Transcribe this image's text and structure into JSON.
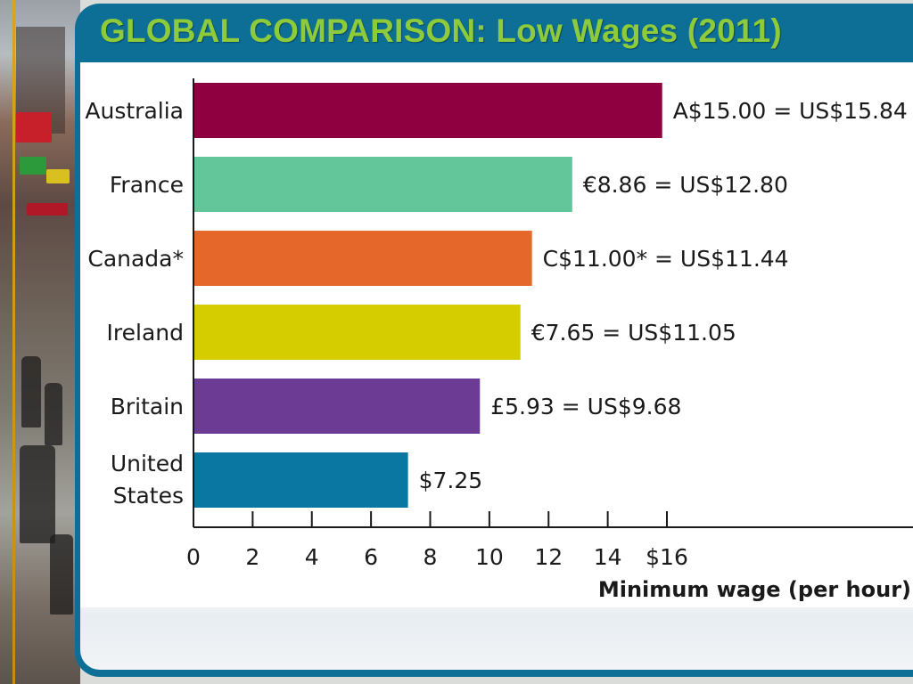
{
  "slide": {
    "title": "GLOBAL COMPARISON: Low Wages (2011)"
  },
  "colors": {
    "frame": "#0d6f96",
    "title": "#8ecb3a",
    "accent_rule": "#d9a41a"
  },
  "chart_data": {
    "type": "bar",
    "orientation": "horizontal",
    "categories": [
      "Australia",
      "France",
      "Canada*",
      "Ireland",
      "Britain",
      "United States"
    ],
    "values": [
      15.84,
      12.8,
      11.44,
      11.05,
      9.68,
      7.25
    ],
    "value_labels": [
      "A$15.00 = US$15.84",
      "€8.86 = US$12.80",
      "C$11.00* = US$11.44",
      "€7.65 = US$11.05",
      "£5.93 = US$9.68",
      "$7.25"
    ],
    "colors": [
      "#8e0040",
      "#63c59a",
      "#e5672a",
      "#d6cd00",
      "#6c3c95",
      "#0a76a2"
    ],
    "xlabel": "Minimum wage (per hour)",
    "xlim": [
      0,
      16
    ],
    "xticks": [
      0,
      2,
      4,
      6,
      8,
      10,
      12,
      14,
      16
    ],
    "xtick_labels": [
      "0",
      "2",
      "4",
      "6",
      "8",
      "10",
      "12",
      "14",
      "$16"
    ],
    "grid": false,
    "legend": "none"
  }
}
